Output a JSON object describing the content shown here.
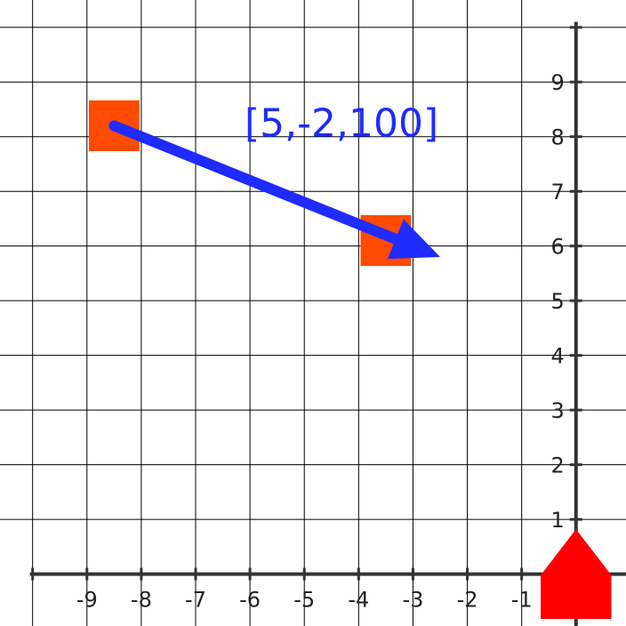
{
  "chart_data": {
    "type": "scatter",
    "title": "",
    "xlabel": "",
    "ylabel": "",
    "xlim": [
      -10.6,
      0.92
    ],
    "ylim": [
      -0.95,
      10.5
    ],
    "x_ticks": [
      "-9",
      "-8",
      "-7",
      "-6",
      "-5",
      "-4",
      "-3",
      "-2",
      "-1"
    ],
    "y_ticks": [
      "1",
      "2",
      "3",
      "4",
      "5",
      "6",
      "7",
      "8",
      "9"
    ],
    "grid": true,
    "squares": [
      {
        "x": -8.5,
        "y": 8.2,
        "color": "#ff4a00"
      },
      {
        "x": -3.5,
        "y": 6.1,
        "color": "#ff4a00"
      }
    ],
    "vector": {
      "label": "[5,-2,100]",
      "from": [
        -8.5,
        8.2
      ],
      "to": [
        -2.5,
        5.8
      ],
      "color": "#1f2bff"
    },
    "origin_marker": {
      "x": 0,
      "y": 0,
      "color": "#ff0000"
    }
  }
}
